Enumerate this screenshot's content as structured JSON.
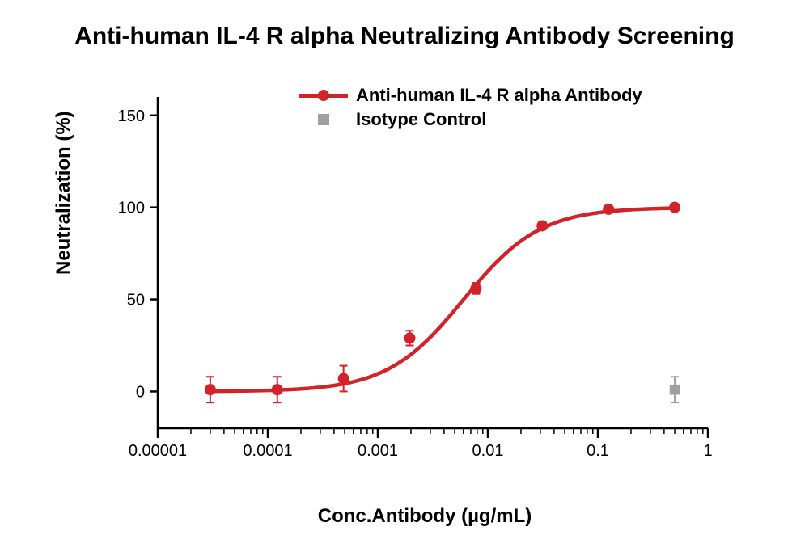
{
  "title": "Anti-human IL-4 R alpha Neutralizing Antibody Screening",
  "ylabel": "Neutralization (%)",
  "xlabel": "Conc.Antibody (µg/mL)",
  "chart": {
    "type": "line-scatter-logx",
    "background_color": "#ffffff",
    "axis_color": "#000000",
    "x_axis": {
      "scale": "log10",
      "min_exp": -5,
      "max_exp": 0,
      "tick_labels": [
        "0.00001",
        "0.0001",
        "0.001",
        "0.01",
        "0.1",
        "1"
      ],
      "tick_fontsize": 20
    },
    "y_axis": {
      "min": -20,
      "max": 160,
      "ticks": [
        0,
        50,
        100,
        150
      ],
      "tick_fontsize": 20
    },
    "series": [
      {
        "name": "Anti-human IL-4 R alpha Antibody",
        "color": "#d2232a",
        "marker": "circle",
        "marker_size": 7,
        "line_width": 4.5,
        "points": [
          {
            "x": 3e-05,
            "y": 1,
            "err": 7
          },
          {
            "x": 0.000122,
            "y": 1,
            "err": 7
          },
          {
            "x": 0.000488,
            "y": 7,
            "err": 7
          },
          {
            "x": 0.001953,
            "y": 29,
            "err": 4
          },
          {
            "x": 0.007813,
            "y": 56,
            "err": 3
          },
          {
            "x": 0.03125,
            "y": 90,
            "err": 2
          },
          {
            "x": 0.125,
            "y": 99,
            "err": 1
          },
          {
            "x": 0.5,
            "y": 100,
            "err": 1
          }
        ],
        "curve": {
          "bottom": 0,
          "top": 100,
          "logEC50": -2.22,
          "hill": 1.25
        }
      },
      {
        "name": "Isotype Control",
        "color": "#a0a0a0",
        "marker": "square",
        "marker_size": 7,
        "points": [
          {
            "x": 0.5,
            "y": 1,
            "err": 7
          }
        ]
      }
    ]
  },
  "legend": {
    "items": [
      {
        "label": "Anti-human IL-4 R alpha Antibody"
      },
      {
        "label": "Isotype Control"
      }
    ],
    "fontsize": 22,
    "fontweight": 700
  },
  "label_fontsize": 24,
  "title_fontsize": 30
}
